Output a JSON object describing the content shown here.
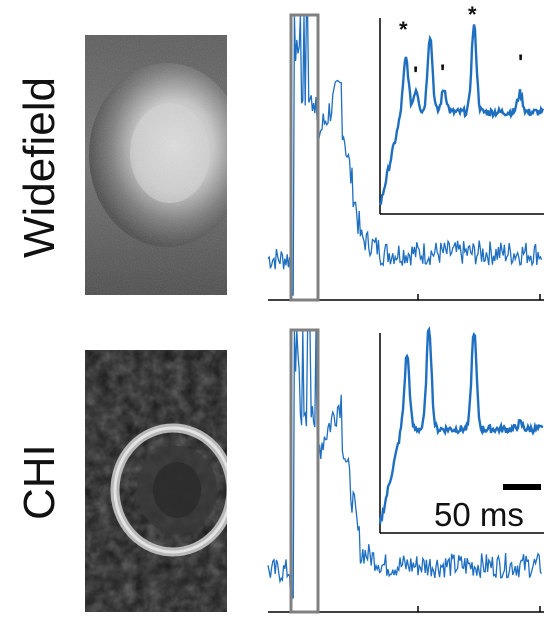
{
  "rows": [
    {
      "label": "Widefield"
    },
    {
      "label": "CHI"
    }
  ],
  "scalebar": {
    "label": "50 ms"
  },
  "markers": [
    "*",
    "*",
    "'",
    "'",
    "'"
  ],
  "colors": {
    "trace": "#1f6fc1",
    "highlight_box": "#808080",
    "axis": "#000000",
    "background": "#ffffff"
  }
}
